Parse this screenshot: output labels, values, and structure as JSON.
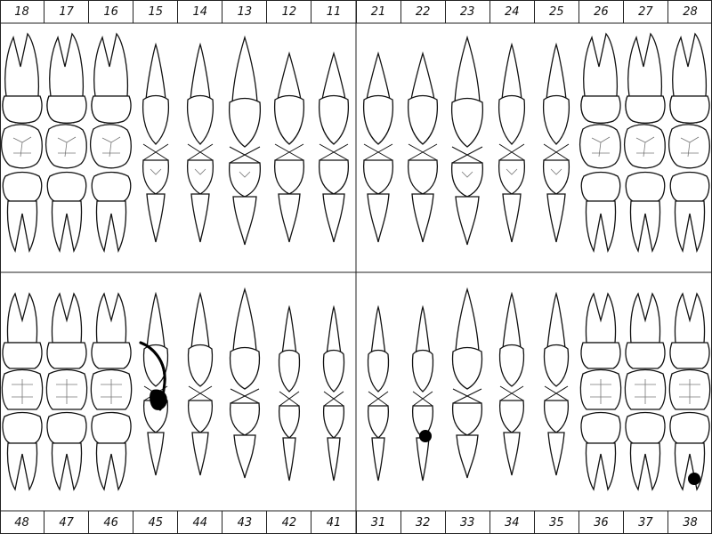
{
  "chart": {
    "upper_row": [
      "18",
      "17",
      "16",
      "15",
      "14",
      "13",
      "12",
      "11",
      "21",
      "22",
      "23",
      "24",
      "25",
      "26",
      "27",
      "28"
    ],
    "lower_row": [
      "48",
      "47",
      "46",
      "45",
      "44",
      "43",
      "42",
      "41",
      "31",
      "32",
      "33",
      "34",
      "35",
      "36",
      "37",
      "38"
    ],
    "marks": [
      {
        "tooth": "45",
        "kind": "arc-with-blob"
      },
      {
        "tooth": "32",
        "kind": "dot"
      },
      {
        "tooth": "38",
        "kind": "dot"
      }
    ]
  }
}
